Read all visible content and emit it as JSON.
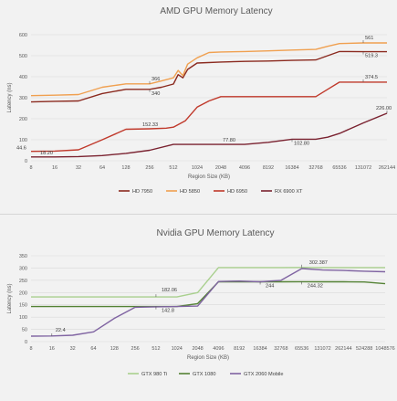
{
  "chart_data": [
    {
      "type": "line",
      "title": "AMD GPU Memory Latency",
      "xlabel": "Region Size (KB)",
      "ylabel": "Latency (ns)",
      "ylim": [
        0,
        600
      ],
      "yticks": [
        0,
        100,
        200,
        300,
        400,
        500,
        600
      ],
      "grid": true,
      "legend": "bottom",
      "categories": [
        "8",
        "16",
        "32",
        "64",
        "128",
        "256",
        "512",
        "1024",
        "2048",
        "4096",
        "8192",
        "16384",
        "32768",
        "65536",
        "131072",
        "262144"
      ],
      "series": [
        {
          "name": "HD 7950",
          "color": "#8b2a1f",
          "points": [
            [
              0,
              280
            ],
            [
              1,
              283
            ],
            [
              2,
              285
            ],
            [
              3,
              320
            ],
            [
              4,
              340
            ],
            [
              5,
              340
            ],
            [
              5.5,
              350
            ],
            [
              6,
              365
            ],
            [
              6.2,
              410
            ],
            [
              6.4,
              395
            ],
            [
              6.6,
              435
            ],
            [
              7,
              465
            ],
            [
              8,
              470
            ],
            [
              9,
              473
            ],
            [
              10,
              475
            ],
            [
              11,
              478
            ],
            [
              12,
              480
            ],
            [
              12.5,
              500
            ],
            [
              13,
              520
            ],
            [
              14,
              519.3
            ],
            [
              15,
              519.3
            ]
          ]
        },
        {
          "name": "HD 5850",
          "color": "#f0a050",
          "points": [
            [
              0,
              310
            ],
            [
              1,
              312
            ],
            [
              2,
              315
            ],
            [
              3,
              350
            ],
            [
              4,
              366
            ],
            [
              5,
              366
            ],
            [
              5.5,
              380
            ],
            [
              6,
              395
            ],
            [
              6.2,
              430
            ],
            [
              6.4,
              405
            ],
            [
              6.6,
              460
            ],
            [
              7,
              490
            ],
            [
              7.5,
              515
            ],
            [
              8,
              518
            ],
            [
              9,
              520
            ],
            [
              10,
              523
            ],
            [
              11,
              527
            ],
            [
              12,
              530
            ],
            [
              12.5,
              545
            ],
            [
              13,
              558
            ],
            [
              14,
              561
            ],
            [
              15,
              561
            ]
          ]
        },
        {
          "name": "HD 6950",
          "color": "#c0392b",
          "points": [
            [
              0,
              44.6
            ],
            [
              1,
              46
            ],
            [
              2,
              52
            ],
            [
              3,
              100
            ],
            [
              4,
              150
            ],
            [
              5,
              152.33
            ],
            [
              5.7,
              155
            ],
            [
              6,
              160
            ],
            [
              6.5,
              190
            ],
            [
              7,
              255
            ],
            [
              7.5,
              285
            ],
            [
              8,
              305
            ],
            [
              9,
              305
            ],
            [
              10,
              305
            ],
            [
              11,
              305
            ],
            [
              12,
              305
            ],
            [
              12.5,
              340
            ],
            [
              13,
              374.5
            ],
            [
              14,
              374.5
            ],
            [
              15,
              374.5
            ]
          ]
        },
        {
          "name": "RX 6900 XT",
          "color": "#7a2230",
          "points": [
            [
              0,
              18.2
            ],
            [
              1,
              18.2
            ],
            [
              2,
              20
            ],
            [
              3,
              25
            ],
            [
              4,
              35
            ],
            [
              5,
              50
            ],
            [
              6,
              78
            ],
            [
              7,
              77.8
            ],
            [
              8,
              77.8
            ],
            [
              9,
              77.8
            ],
            [
              10,
              88
            ],
            [
              11,
              102.8
            ],
            [
              12,
              102.8
            ],
            [
              12.5,
              112
            ],
            [
              13,
              130
            ],
            [
              14,
              180
            ],
            [
              15,
              226
            ]
          ]
        }
      ],
      "annotations": [
        {
          "text": "366",
          "x": 5,
          "y": 366
        },
        {
          "text": "340",
          "x": 5,
          "y": 340
        },
        {
          "text": "561",
          "x": 14,
          "y": 561
        },
        {
          "text": "519.3",
          "x": 14,
          "y": 519.3
        },
        {
          "text": "152.33",
          "x": 5,
          "y": 152.33
        },
        {
          "text": "374.5",
          "x": 14,
          "y": 374.5
        },
        {
          "text": "44.6",
          "x": 0,
          "y": 44.6
        },
        {
          "text": "18.20",
          "x": 1,
          "y": 18.2
        },
        {
          "text": "77.80",
          "x": 8,
          "y": 77.8
        },
        {
          "text": "102.80",
          "x": 11,
          "y": 102.8
        },
        {
          "text": "226.00",
          "x": 15,
          "y": 226
        }
      ]
    },
    {
      "type": "line",
      "title": "Nvidia GPU Memory Latency",
      "xlabel": "Region Size (KB)",
      "ylabel": "Latency (ns)",
      "ylim": [
        0,
        350
      ],
      "yticks": [
        0,
        50,
        100,
        150,
        200,
        250,
        300,
        350
      ],
      "grid": true,
      "legend": "bottom",
      "categories": [
        "8",
        "16",
        "32",
        "64",
        "128",
        "256",
        "512",
        "1024",
        "2048",
        "4096",
        "8192",
        "16384",
        "32768",
        "65536",
        "131072",
        "262144",
        "524288",
        "1048576"
      ],
      "series": [
        {
          "name": "GTX 980 Ti",
          "color": "#a9d08e",
          "points": [
            [
              0,
              182.06
            ],
            [
              1,
              182.06
            ],
            [
              2,
              182.06
            ],
            [
              3,
              182.06
            ],
            [
              4,
              182.06
            ],
            [
              5,
              182.06
            ],
            [
              6,
              182.06
            ],
            [
              7,
              182.06
            ],
            [
              8,
              200
            ],
            [
              9,
              302
            ],
            [
              10,
              302
            ],
            [
              11,
              302
            ],
            [
              12,
              302
            ],
            [
              13,
              302.387
            ],
            [
              14,
              302
            ],
            [
              15,
              302
            ],
            [
              16,
              302
            ],
            [
              17,
              302
            ]
          ]
        },
        {
          "name": "GTX 1080",
          "color": "#548235",
          "points": [
            [
              0,
              142.8
            ],
            [
              1,
              142.8
            ],
            [
              2,
              142.8
            ],
            [
              3,
              142.8
            ],
            [
              4,
              142.8
            ],
            [
              5,
              142.8
            ],
            [
              6,
              142.8
            ],
            [
              7,
              142.8
            ],
            [
              8,
              155
            ],
            [
              9,
              244
            ],
            [
              10,
              244
            ],
            [
              11,
              244
            ],
            [
              12,
              244
            ],
            [
              13,
              244.32
            ],
            [
              14,
              244
            ],
            [
              15,
              244
            ],
            [
              16,
              243
            ],
            [
              17,
              236
            ]
          ]
        },
        {
          "name": "GTX 2060 Mobile",
          "color": "#8064a2",
          "points": [
            [
              0,
              22.4
            ],
            [
              1,
              23
            ],
            [
              2,
              26
            ],
            [
              3,
              40
            ],
            [
              4,
              95
            ],
            [
              5,
              140
            ],
            [
              6,
              142
            ],
            [
              7,
              143
            ],
            [
              8,
              145
            ],
            [
              9,
              245
            ],
            [
              10,
              247
            ],
            [
              11,
              244
            ],
            [
              12,
              250
            ],
            [
              13,
              298
            ],
            [
              14,
              292
            ],
            [
              15,
              290
            ],
            [
              16,
              287
            ],
            [
              17,
              285
            ]
          ]
        }
      ],
      "annotations": [
        {
          "text": "182.06",
          "x": 6,
          "y": 182.06
        },
        {
          "text": "142.8",
          "x": 6,
          "y": 142.8
        },
        {
          "text": "22.4",
          "x": 1,
          "y": 22.4
        },
        {
          "text": "302.387",
          "x": 13,
          "y": 302.387
        },
        {
          "text": "244",
          "x": 11,
          "y": 244
        },
        {
          "text": "244.32",
          "x": 13,
          "y": 244.32
        }
      ]
    }
  ]
}
